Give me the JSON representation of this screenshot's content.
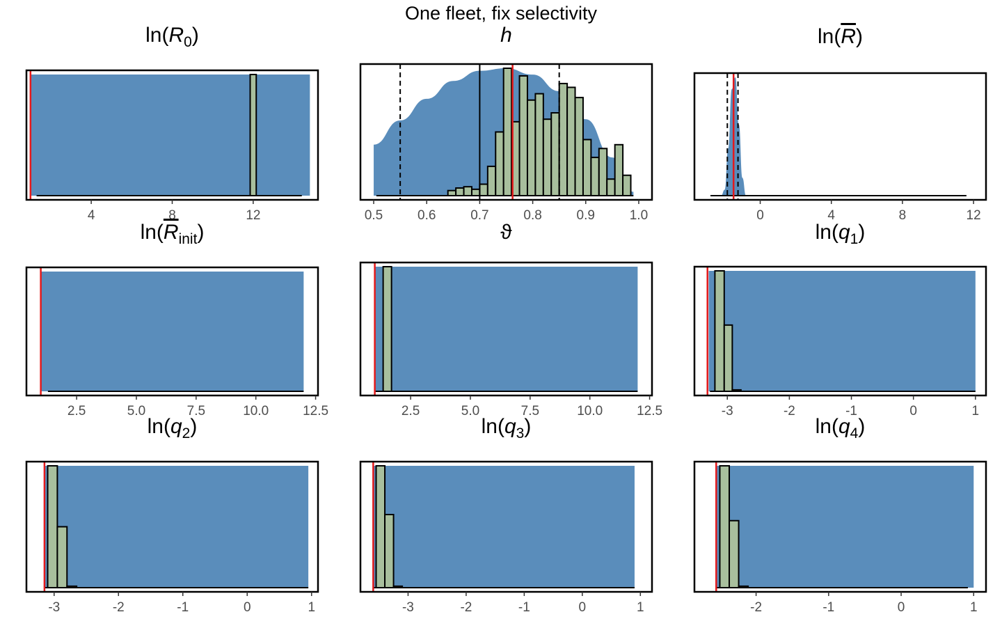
{
  "figure_title": "One fleet, fix selectivity",
  "colors": {
    "prior_fill": "#5a8dbb",
    "hist_fill": "#a8bf9d",
    "hist_fill_light": "#f3efbd",
    "hist_stroke": "#000000",
    "true_value_line": "#e41a1c",
    "axis_text": "#4d4d4d"
  },
  "chart_data": [
    {
      "type": "histogram",
      "title": "ln(R0)",
      "title_parts": {
        "pre": "ln(",
        "var": "R",
        "sub": "0",
        "post": ")"
      },
      "xlim": [
        0.8,
        15.2
      ],
      "ticks": [
        4,
        8,
        12
      ],
      "tick_labels": [
        "4",
        "8",
        "12"
      ],
      "prior": {
        "shape": "uniform",
        "x": [
          1,
          14.8
        ],
        "y": [
          1,
          1
        ]
      },
      "hist_bins": [
        {
          "x0": 11.85,
          "x1": 12.15,
          "height": 1.0
        }
      ],
      "baseline": [
        1.3,
        14.4
      ],
      "true_value": 1.0,
      "vlines": []
    },
    {
      "type": "histogram",
      "title": "h",
      "title_parts": {
        "pre": "",
        "var": "h",
        "sub": "",
        "post": ""
      },
      "xlim": [
        0.475,
        1.025
      ],
      "ticks": [
        0.5,
        0.6,
        0.7,
        0.8,
        0.9,
        1.0
      ],
      "tick_labels": [
        "0.5",
        "0.6",
        "0.7",
        "0.8",
        "0.9",
        "1.0"
      ],
      "prior": {
        "shape": "density",
        "x": [
          0.5,
          0.55,
          0.6,
          0.65,
          0.7,
          0.75,
          0.8,
          0.85,
          0.9,
          0.95,
          0.99
        ],
        "y": [
          0.4,
          0.59,
          0.76,
          0.9,
          0.98,
          1.0,
          0.95,
          0.82,
          0.6,
          0.3,
          0.03
        ]
      },
      "hist_bins": [
        {
          "x0": 0.64,
          "x1": 0.655,
          "height": 0.04
        },
        {
          "x0": 0.655,
          "x1": 0.67,
          "height": 0.06
        },
        {
          "x0": 0.67,
          "x1": 0.685,
          "height": 0.07
        },
        {
          "x0": 0.685,
          "x1": 0.7,
          "height": 0.05
        },
        {
          "x0": 0.7,
          "x1": 0.715,
          "height": 0.09
        },
        {
          "x0": 0.715,
          "x1": 0.73,
          "height": 0.23
        },
        {
          "x0": 0.73,
          "x1": 0.745,
          "height": 0.5
        },
        {
          "x0": 0.745,
          "x1": 0.76,
          "height": 1.0
        },
        {
          "x0": 0.76,
          "x1": 0.775,
          "height": 0.58
        },
        {
          "x0": 0.775,
          "x1": 0.79,
          "height": 0.94
        },
        {
          "x0": 0.79,
          "x1": 0.805,
          "height": 0.75
        },
        {
          "x0": 0.805,
          "x1": 0.82,
          "height": 0.8
        },
        {
          "x0": 0.82,
          "x1": 0.835,
          "height": 0.6
        },
        {
          "x0": 0.835,
          "x1": 0.85,
          "height": 0.65
        },
        {
          "x0": 0.85,
          "x1": 0.865,
          "height": 0.88
        },
        {
          "x0": 0.865,
          "x1": 0.88,
          "height": 0.85
        },
        {
          "x0": 0.88,
          "x1": 0.895,
          "height": 0.77
        },
        {
          "x0": 0.895,
          "x1": 0.91,
          "height": 0.44
        },
        {
          "x0": 0.91,
          "x1": 0.925,
          "height": 0.3
        },
        {
          "x0": 0.925,
          "x1": 0.94,
          "height": 0.37
        },
        {
          "x0": 0.94,
          "x1": 0.955,
          "height": 0.13
        },
        {
          "x0": 0.955,
          "x1": 0.97,
          "height": 0.4
        },
        {
          "x0": 0.97,
          "x1": 0.985,
          "height": 0.16
        }
      ],
      "baseline": [
        0.505,
        0.99
      ],
      "true_value": 0.762,
      "vlines": [
        {
          "x": 0.55,
          "style": "dashed"
        },
        {
          "x": 0.85,
          "style": "dashed"
        },
        {
          "x": 0.7,
          "style": "solid"
        }
      ]
    },
    {
      "type": "histogram",
      "title": "ln(R̄)",
      "title_parts": {
        "pre": "ln(",
        "var": "R",
        "sub": "",
        "post": ")",
        "overline": true
      },
      "xlim": [
        -3.7,
        12.7
      ],
      "ticks": [
        0,
        4,
        8,
        12
      ],
      "tick_labels": [
        "0",
        "4",
        "8",
        "12"
      ],
      "prior": {
        "shape": "density",
        "x": [
          -2.2,
          -2.0,
          -1.8,
          -1.6,
          -1.4,
          -1.2,
          -1.0,
          -0.8
        ],
        "y": [
          0.0,
          0.05,
          0.4,
          0.9,
          1.0,
          0.6,
          0.15,
          0.0
        ]
      },
      "hist_bins": [],
      "baseline": [
        -2.8,
        11.6
      ],
      "true_value": -1.5,
      "vlines": [
        {
          "x": -1.85,
          "style": "dashed"
        },
        {
          "x": -1.25,
          "style": "dashed"
        }
      ]
    },
    {
      "type": "histogram",
      "title": "ln(R̄init)",
      "title_parts": {
        "pre": "ln(",
        "var": "R",
        "sub": "init",
        "post": ")",
        "overline": true
      },
      "xlim": [
        0.4,
        12.6
      ],
      "ticks": [
        2.5,
        5.0,
        7.5,
        10.0,
        12.5
      ],
      "tick_labels": [
        "2.5",
        "5.0",
        "7.5",
        "10.0",
        "12.5"
      ],
      "prior": {
        "shape": "uniform",
        "x": [
          1,
          12
        ],
        "y": [
          1,
          1
        ]
      },
      "hist_bins": [],
      "baseline": [
        1.3,
        12.0
      ],
      "true_value": 1.0,
      "vlines": []
    },
    {
      "type": "histogram",
      "title": "ϑ",
      "title_parts": {
        "pre": "",
        "var": "ϑ",
        "sub": "",
        "post": "",
        "upright": true
      },
      "xlim": [
        0.4,
        12.6
      ],
      "ticks": [
        2.5,
        5.0,
        7.5,
        10.0,
        12.5
      ],
      "tick_labels": [
        "2.5",
        "5.0",
        "7.5",
        "10.0",
        "12.5"
      ],
      "prior": {
        "shape": "uniform",
        "x": [
          1,
          12
        ],
        "y": [
          1,
          1
        ]
      },
      "hist_bins": [
        {
          "x0": 1.35,
          "x1": 1.7,
          "height": 1.0
        }
      ],
      "baseline": [
        1.0,
        12.0
      ],
      "true_value": 1.0,
      "vlines": []
    },
    {
      "type": "histogram",
      "title": "ln(q1)",
      "title_parts": {
        "pre": "ln(",
        "var": "q",
        "sub": "1",
        "post": ")"
      },
      "xlim": [
        -3.53,
        1.17
      ],
      "ticks": [
        -3,
        -2,
        -1,
        0,
        1
      ],
      "tick_labels": [
        "-3",
        "-2",
        "-1",
        "0",
        "1"
      ],
      "prior": {
        "shape": "uniform",
        "x": [
          -3.3,
          1.0
        ],
        "y": [
          1,
          1
        ]
      },
      "hist_bins": [
        {
          "x0": -3.2,
          "x1": -3.05,
          "height": 1.0
        },
        {
          "x0": -3.05,
          "x1": -2.92,
          "height": 0.55
        },
        {
          "x0": -2.92,
          "x1": -2.78,
          "height": 0.012
        }
      ],
      "baseline": [
        -3.28,
        1.0
      ],
      "true_value": -3.32,
      "vlines": []
    },
    {
      "type": "histogram",
      "title": "ln(q2)",
      "title_parts": {
        "pre": "ln(",
        "var": "q",
        "sub": "2",
        "post": ")"
      },
      "xlim": [
        -3.43,
        1.1
      ],
      "ticks": [
        -3,
        -2,
        -1,
        0,
        1
      ],
      "tick_labels": [
        "-3",
        "-2",
        "-1",
        "0",
        "1"
      ],
      "prior": {
        "shape": "uniform",
        "x": [
          -3.15,
          0.95
        ],
        "y": [
          1,
          1
        ]
      },
      "hist_bins": [
        {
          "x0": -3.1,
          "x1": -2.95,
          "height": 1.0
        },
        {
          "x0": -2.95,
          "x1": -2.8,
          "height": 0.5
        },
        {
          "x0": -2.8,
          "x1": -2.65,
          "height": 0.012
        }
      ],
      "baseline": [
        -3.15,
        0.95
      ],
      "true_value": -3.15,
      "vlines": []
    },
    {
      "type": "histogram",
      "title": "ln(q3)",
      "title_parts": {
        "pre": "ln(",
        "var": "q",
        "sub": "3",
        "post": ")"
      },
      "xlim": [
        -3.82,
        1.2
      ],
      "ticks": [
        -3,
        -2,
        -1,
        0,
        1
      ],
      "tick_labels": [
        "-3",
        "-2",
        "-1",
        "0",
        "1"
      ],
      "prior": {
        "shape": "uniform",
        "x": [
          -3.6,
          0.9
        ],
        "y": [
          1,
          1
        ]
      },
      "hist_bins": [
        {
          "x0": -3.55,
          "x1": -3.4,
          "height": 1.0
        },
        {
          "x0": -3.4,
          "x1": -3.25,
          "height": 0.6
        },
        {
          "x0": -3.25,
          "x1": -3.1,
          "height": 0.012
        }
      ],
      "baseline": [
        -3.6,
        0.9
      ],
      "true_value": -3.6,
      "vlines": []
    },
    {
      "type": "histogram",
      "title": "ln(q4)",
      "title_parts": {
        "pre": "ln(",
        "var": "q",
        "sub": "4",
        "post": ")"
      },
      "xlim": [
        -2.85,
        1.17
      ],
      "ticks": [
        -2,
        -1,
        0,
        1
      ],
      "tick_labels": [
        "-2",
        "-1",
        "0",
        "1"
      ],
      "prior": {
        "shape": "uniform",
        "x": [
          -2.55,
          1.0
        ],
        "y": [
          1,
          1
        ]
      },
      "hist_bins": [
        {
          "x0": -2.5,
          "x1": -2.37,
          "height": 1.0
        },
        {
          "x0": -2.37,
          "x1": -2.24,
          "height": 0.55
        },
        {
          "x0": -2.24,
          "x1": -2.11,
          "height": 0.012
        }
      ],
      "baseline": [
        -2.55,
        0.92
      ],
      "true_value": -2.55,
      "vlines": []
    }
  ]
}
